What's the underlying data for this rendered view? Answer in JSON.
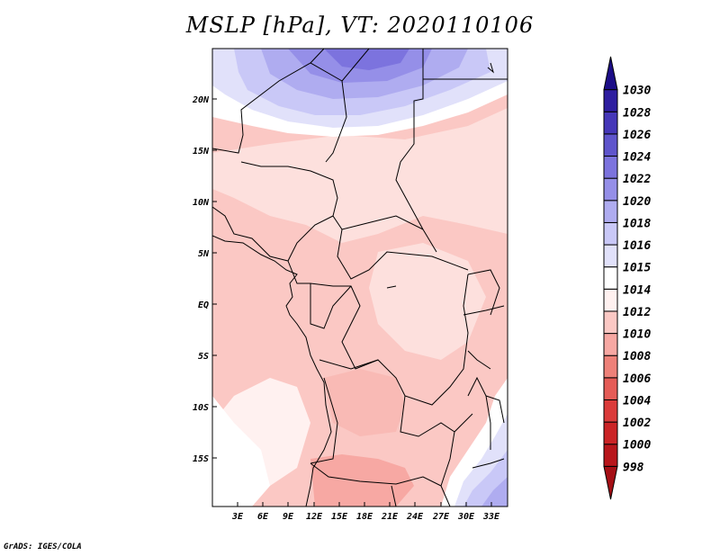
{
  "title": "MSLP [hPa], VT: 2020110106",
  "credit": "GrADS: IGES/COLA",
  "lat_labels": [
    "20N",
    "15N",
    "10N",
    "5N",
    "EQ",
    "5S",
    "10S",
    "15S"
  ],
  "lon_labels": [
    "3E",
    "6E",
    "9E",
    "12E",
    "15E",
    "18E",
    "21E",
    "24E",
    "27E",
    "30E",
    "33E"
  ],
  "colorbar": {
    "levels": [
      "998",
      "1000",
      "1002",
      "1004",
      "1006",
      "1008",
      "1010",
      "1012",
      "1014",
      "1015",
      "1016",
      "1018",
      "1020",
      "1022",
      "1024",
      "1026",
      "1028",
      "1030"
    ],
    "colors": [
      "#a50f15",
      "#b8161b",
      "#cb2426",
      "#db3b3a",
      "#e55c57",
      "#ee8179",
      "#f7a8a3",
      "#fbc8c4",
      "#fff1f0",
      "#ffffff",
      "#e1e1fa",
      "#c9c8f7",
      "#afacf0",
      "#958fe8",
      "#7c73de",
      "#5f55cc",
      "#4537b8",
      "#2e1ea0",
      "#1c0d87"
    ]
  },
  "map": {
    "projection": "lat-lon",
    "lon_range": [
      0,
      35
    ],
    "lat_range": [
      -20,
      24
    ],
    "field": "mean sea level pressure"
  }
}
